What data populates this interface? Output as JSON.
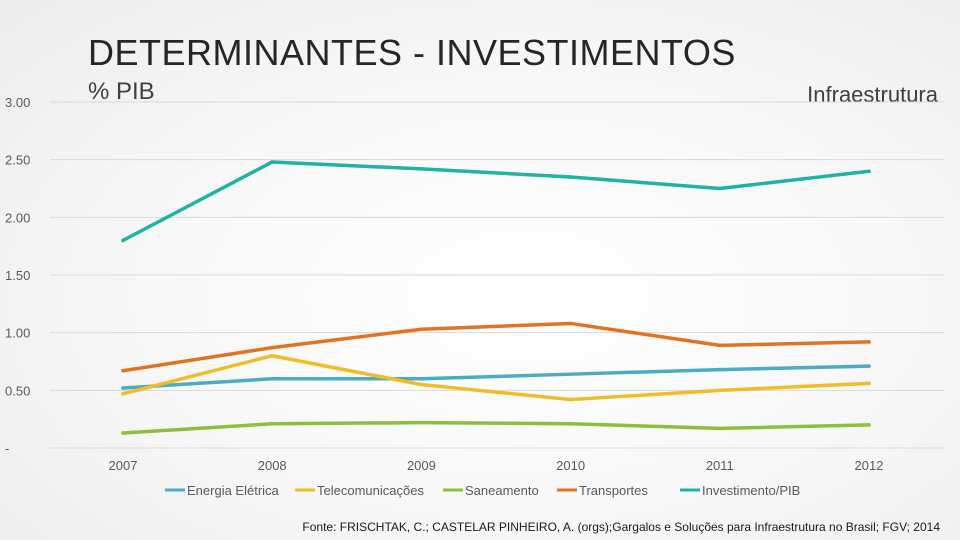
{
  "slide": {
    "title": "DETERMINANTES - INVESTIMENTOS",
    "subtitle": "% PIB",
    "tag": "Infraestrutura",
    "source": "Fonte: FRISCHTAK, C.; CASTELAR PINHEIRO, A. (orgs);Gargalos e Soluções para Infraestrutura no Brasil; FGV; 2014"
  },
  "chart_data": {
    "type": "line",
    "title": "",
    "xlabel": "",
    "ylabel": "",
    "categories": [
      "2007",
      "2008",
      "2009",
      "2010",
      "2011",
      "2012"
    ],
    "ylim": [
      0,
      3
    ],
    "yticks": [
      0,
      0.5,
      1,
      1.5,
      2,
      2.5,
      3
    ],
    "ytick_labels": [
      "-",
      "0.50",
      "1.00",
      "1.50",
      "2.00",
      "2.50",
      "3.00"
    ],
    "grid": true,
    "legend_position": "bottom",
    "series": [
      {
        "name": "Energia Elétrica",
        "color": "#4bacc6",
        "values": [
          0.52,
          0.6,
          0.6,
          0.64,
          0.68,
          0.71
        ]
      },
      {
        "name": "Telecomunicações",
        "color": "#f0bd26",
        "values": [
          0.47,
          0.8,
          0.55,
          0.42,
          0.5,
          0.56
        ]
      },
      {
        "name": "Saneamento",
        "color": "#8dbf3d",
        "values": [
          0.13,
          0.21,
          0.22,
          0.21,
          0.17,
          0.2
        ]
      },
      {
        "name": "Transportes",
        "color": "#e07422",
        "values": [
          0.67,
          0.87,
          1.03,
          1.08,
          0.89,
          0.92
        ]
      },
      {
        "name": "Investimento/PIB",
        "color": "#1fb3a5",
        "values": [
          1.8,
          2.48,
          2.42,
          2.35,
          2.25,
          2.4
        ]
      }
    ]
  }
}
